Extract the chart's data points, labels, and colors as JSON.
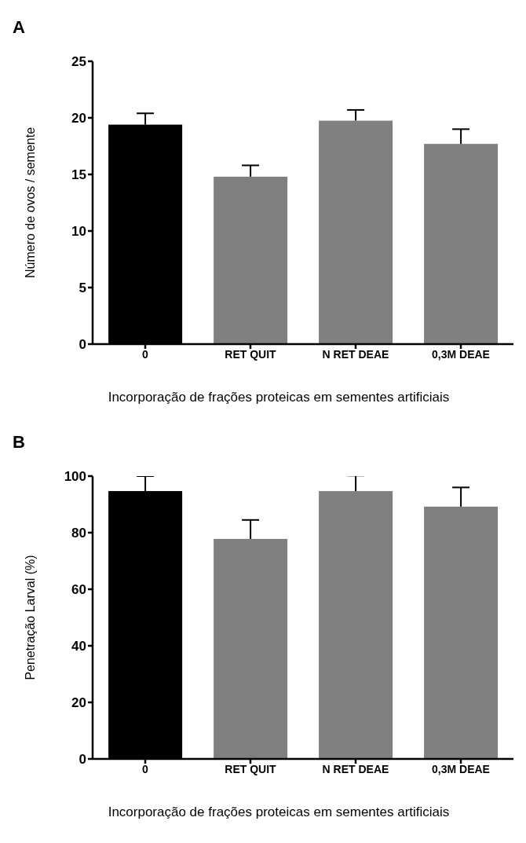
{
  "chart_data": [
    {
      "type": "bar",
      "title": "A",
      "categories": [
        "0",
        "RET QUIT",
        "N RET DEAE",
        "0,3M DEAE"
      ],
      "values": [
        19.4,
        14.8,
        19.75,
        17.7
      ],
      "errors": [
        [
          19.4,
          20.4
        ],
        [
          14.8,
          15.8
        ],
        [
          19.75,
          20.7
        ],
        [
          17.7,
          19.0
        ]
      ],
      "colors": [
        "#000000",
        "#808080",
        "#808080",
        "#808080"
      ],
      "ylim": [
        0,
        25
      ],
      "yticks": [
        0,
        5,
        10,
        15,
        20,
        25
      ],
      "ylabel": "Número de ovos / semente",
      "xlabel": "Incorporação de frações proteicas em sementes artificiais",
      "grid": false,
      "legend": false
    },
    {
      "type": "bar",
      "title": "B",
      "categories": [
        "0",
        "RET QUIT",
        "N RET DEAE",
        "0,3M DEAE"
      ],
      "values": [
        94.7,
        77.8,
        94.7,
        89.2
      ],
      "errors": [
        [
          94.7,
          100
        ],
        [
          77.8,
          84.5
        ],
        [
          94.7,
          100.2
        ],
        [
          89.2,
          96
        ]
      ],
      "colors": [
        "#000000",
        "#808080",
        "#808080",
        "#808080"
      ],
      "ylim": [
        0,
        100
      ],
      "yticks": [
        0,
        20,
        40,
        60,
        80,
        100
      ],
      "ylabel": "Penetração Larval (%)",
      "xlabel": "Incorporação de frações proteicas em sementes artificiais",
      "grid": false,
      "legend": false
    }
  ]
}
